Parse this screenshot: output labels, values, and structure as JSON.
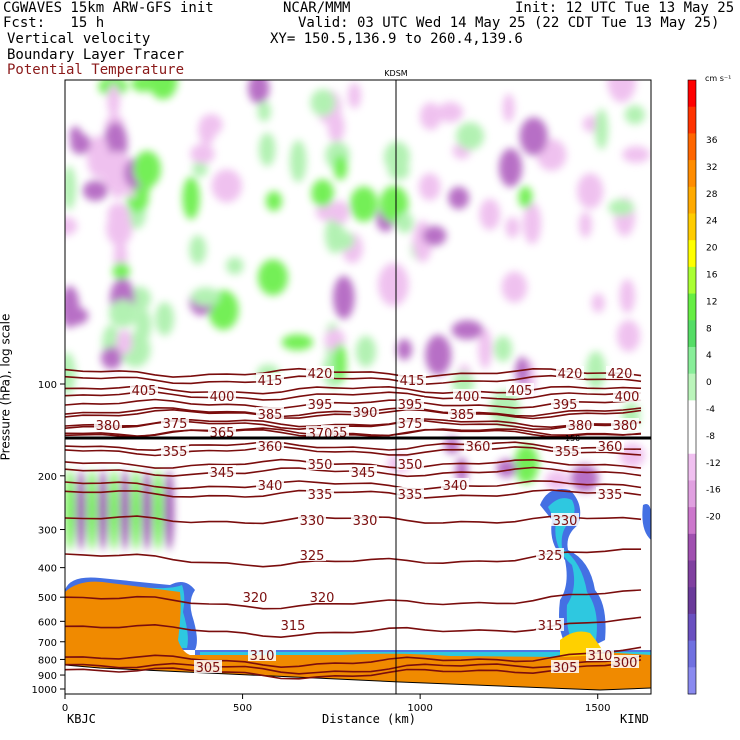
{
  "header": {
    "line1_left": "CGWAVES 15km ARW-GFS init",
    "line1_mid": "NCAR/MMM",
    "line1_right": "Init: 12 UTC Tue 13 May 25",
    "line2_left": "Fcst:   15 h",
    "line2_right": "Valid: 03 UTC Wed 14 May 25 (22 CDT Tue 13 May 25)",
    "line3_left": "Vertical velocity",
    "line3_right": "XY= 150.5,136.9 to 260.4,139.6",
    "line4_left": "Boundary Layer Tracer",
    "line5_left": "Potential Temperature",
    "line5_color": "#8b1a1a"
  },
  "colors": {
    "theta": "#7a0d0d",
    "terrain": "#f08a00",
    "frame": "#000000"
  },
  "chart_data": {
    "type": "heatmap",
    "xlabel": "Distance (km)",
    "ylabel": "Pressure (hPa), log scale",
    "x_ticks": [
      0,
      500,
      1000,
      1500
    ],
    "xlim": [
      0,
      1650
    ],
    "y_ticks": [
      100,
      200,
      300,
      400,
      500,
      600,
      700,
      800,
      900,
      1000
    ],
    "y_scale": "log",
    "left_station": "KBJC",
    "right_station": "KIND",
    "marker_station": "KDSM",
    "marker_x_km": 930,
    "tropopause_label": "150",
    "colorbar": {
      "unit": "cm s⁻¹",
      "levels": [
        36,
        32,
        28,
        24,
        20,
        16,
        12,
        8,
        4,
        0,
        -4,
        -8,
        -12,
        -16,
        -20
      ],
      "colors": [
        "#ff0000",
        "#ff3300",
        "#ff6600",
        "#ff8c00",
        "#ffaa00",
        "#ffcc00",
        "#ffff00",
        "#aaff33",
        "#66ee44",
        "#55dd66",
        "#88ee99",
        "#bbf5bb",
        "#ffffff",
        "#ffffff",
        "#f0c0f0",
        "#e0a0e0",
        "#cc77cc",
        "#a050b0",
        "#8040a0",
        "#6a3a9a",
        "#6a50c0",
        "#7070e0",
        "#8a8af0"
      ]
    },
    "theta_contours": [
      {
        "value": 300,
        "labels": [
          "300"
        ]
      },
      {
        "value": 305,
        "labels": [
          "305",
          "305"
        ]
      },
      {
        "value": 310,
        "labels": [
          "310",
          "310"
        ]
      },
      {
        "value": 315,
        "labels": [
          "315",
          "315"
        ]
      },
      {
        "value": 320,
        "labels": [
          "320",
          "320"
        ]
      },
      {
        "value": 325,
        "labels": [
          "325",
          "325"
        ]
      },
      {
        "value": 330,
        "labels": [
          "330",
          "330",
          "330"
        ]
      },
      {
        "value": 335,
        "labels": [
          "335",
          "335",
          "335"
        ]
      },
      {
        "value": 340,
        "labels": [
          "340",
          "340"
        ]
      },
      {
        "value": 345,
        "labels": [
          "345",
          "345"
        ]
      },
      {
        "value": 350,
        "labels": [
          "350",
          "350"
        ]
      },
      {
        "value": 355,
        "labels": [
          "355",
          "355"
        ]
      },
      {
        "value": 360,
        "labels": [
          "360",
          "360",
          "360"
        ]
      },
      {
        "value": 365,
        "labels": [
          "365",
          "365"
        ]
      },
      {
        "value": 370,
        "labels": [
          "370"
        ]
      },
      {
        "value": 375,
        "labels": [
          "375",
          "375"
        ]
      },
      {
        "value": 380,
        "labels": [
          "380",
          "380",
          "380"
        ]
      },
      {
        "value": 385,
        "labels": [
          "385",
          "385"
        ]
      },
      {
        "value": 390,
        "labels": [
          "390"
        ]
      },
      {
        "value": 395,
        "labels": [
          "395",
          "395",
          "395"
        ]
      },
      {
        "value": 400,
        "labels": [
          "400",
          "400",
          "400"
        ]
      },
      {
        "value": 405,
        "labels": [
          "405",
          "405"
        ]
      },
      {
        "value": 415,
        "labels": [
          "415",
          "415"
        ]
      },
      {
        "value": 420,
        "labels": [
          "420",
          "420",
          "420"
        ]
      }
    ]
  }
}
